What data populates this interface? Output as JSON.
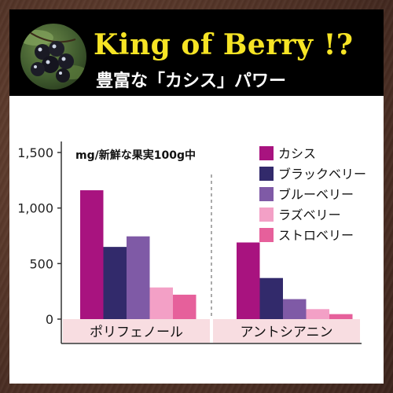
{
  "header": {
    "title": "King of Berry !?",
    "subtitle": "豊富な「カシス」パワー",
    "photo_icon": "blackcurrant-berries-photo"
  },
  "chart_data": {
    "type": "bar",
    "title": "",
    "ylabel": "",
    "unit_label": "mg/新鮮な果実100g中",
    "categories": [
      "ポリフェノール",
      "アントシアニン"
    ],
    "series": [
      {
        "name": "カシス",
        "color": "#a8137f",
        "values": [
          1160,
          690
        ]
      },
      {
        "name": "ブラックベリー",
        "color": "#322a6b",
        "values": [
          650,
          370
        ]
      },
      {
        "name": "ブルーベリー",
        "color": "#7f5aa6",
        "values": [
          745,
          180
        ]
      },
      {
        "name": "ラズベリー",
        "color": "#f3a0c6",
        "values": [
          285,
          90
        ]
      },
      {
        "name": "ストロベリー",
        "color": "#e6609b",
        "values": [
          220,
          45
        ]
      }
    ],
    "ylim": [
      0,
      1500
    ],
    "yticks": [
      0,
      500,
      1000,
      1500
    ],
    "ytick_labels": [
      "0",
      "500",
      "1,000",
      "1,500"
    ],
    "legend_position": "top-right",
    "grid": false,
    "category_band_color": "#f8dde1"
  }
}
